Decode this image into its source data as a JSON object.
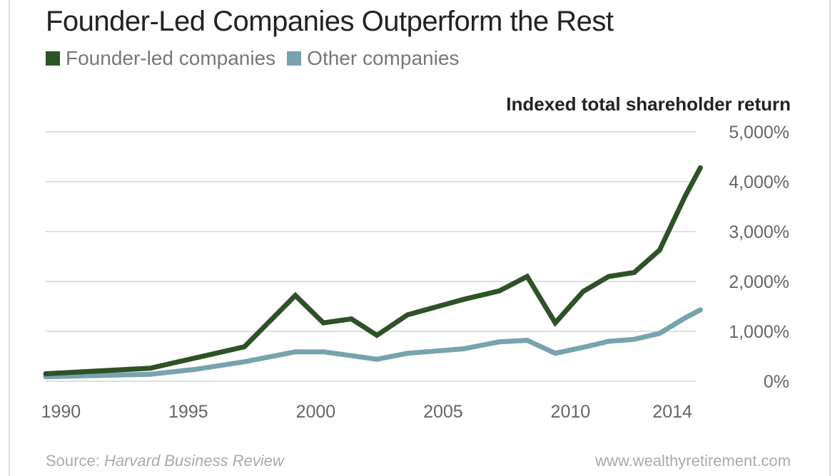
{
  "chart_data": {
    "type": "line",
    "title": "Founder-Led Companies Outperform the Rest",
    "ylabel": "Indexed total shareholder return",
    "xlabel": "",
    "xlim": [
      1989.4,
      2015.2
    ],
    "ylim": [
      0,
      5000
    ],
    "x_ticks": [
      1990,
      1995,
      2000,
      2005,
      2010,
      2014
    ],
    "x_tick_labels": [
      "1990",
      "1995",
      "2000",
      "2005",
      "2010",
      "2014"
    ],
    "y_ticks": [
      0,
      1000,
      2000,
      3000,
      4000,
      5000
    ],
    "y_tick_labels": [
      "0%",
      "1,000%",
      "2,000%",
      "3,000%",
      "4,000%",
      "5,000%"
    ],
    "grid": true,
    "legend_position": "top-left",
    "series": [
      {
        "name": "Founder-led companies",
        "color": "#2d5226",
        "x": [
          1989.4,
          1993.5,
          1995.3,
          1997.2,
          1999.2,
          2000.3,
          2001.4,
          2002.4,
          2003.6,
          2005.8,
          2007.2,
          2008.3,
          2009.4,
          2010.5,
          2011.5,
          2012.5,
          2013.5,
          2014.5,
          2015.1
        ],
        "values": [
          150,
          260,
          470,
          690,
          1720,
          1170,
          1250,
          920,
          1330,
          1640,
          1810,
          2100,
          1170,
          1800,
          2100,
          2180,
          2630,
          3710,
          4280
        ]
      },
      {
        "name": "Other companies",
        "color": "#76a3ae",
        "x": [
          1989.4,
          1993.5,
          1995.3,
          1997.2,
          1999.2,
          2000.3,
          2002.4,
          2003.6,
          2005.8,
          2007.2,
          2008.3,
          2009.4,
          2010.5,
          2011.5,
          2012.5,
          2013.5,
          2014.5,
          2015.1
        ],
        "values": [
          90,
          140,
          240,
          390,
          590,
          590,
          440,
          560,
          650,
          790,
          820,
          560,
          680,
          800,
          840,
          960,
          1270,
          1430
        ]
      }
    ]
  },
  "legend": [
    {
      "label": "Founder-led companies",
      "color": "#2d5226"
    },
    {
      "label": "Other companies",
      "color": "#76a3ae"
    }
  ],
  "footer": {
    "source_prefix": "Source: ",
    "source_name": "Harvard Business Review",
    "website": "www.wealthyretirement.com"
  }
}
